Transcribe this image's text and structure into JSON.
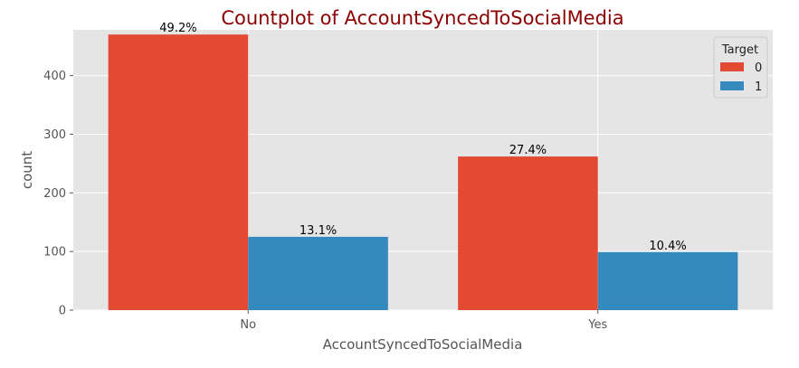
{
  "chart_data": {
    "type": "bar",
    "title": "Countplot of AccountSyncedToSocialMedia",
    "xlabel": "AccountSyncedToSocialMedia",
    "ylabel": "count",
    "categories": [
      "No",
      "Yes"
    ],
    "series": [
      {
        "name": "0",
        "values": [
          470,
          262
        ],
        "labels": [
          "49.2%",
          "27.4%"
        ],
        "color": "#e24a33"
      },
      {
        "name": "1",
        "values": [
          125,
          99
        ],
        "labels": [
          "13.1%",
          "10.4%"
        ],
        "color": "#348abd"
      }
    ],
    "ylim": [
      0,
      478
    ],
    "yticks": [
      0,
      100,
      200,
      300,
      400
    ],
    "legend": {
      "title": "Target",
      "position": "top-right"
    },
    "grid": true,
    "background": "#e5e5e5"
  }
}
